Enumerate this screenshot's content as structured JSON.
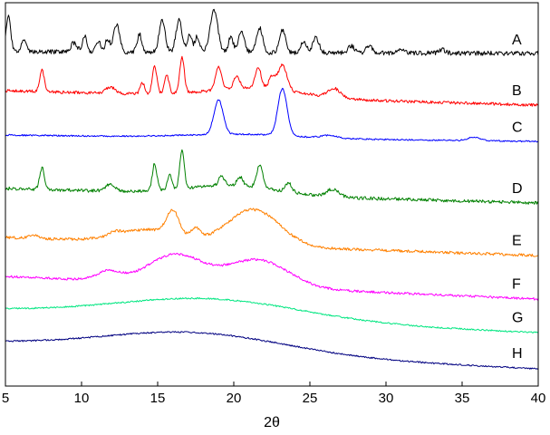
{
  "chart_data": {
    "type": "line",
    "title": "",
    "xlabel": "2θ",
    "ylabel": "",
    "xlim": [
      5,
      40
    ],
    "x_ticks": [
      5,
      10,
      15,
      20,
      25,
      30,
      35,
      40
    ],
    "y_ticks_shown": false,
    "grid": false,
    "legend": "none (labels placed at right end of each trace)",
    "series": [
      {
        "name": "A",
        "color": "#000000",
        "baseline": 57,
        "peaks": [
          [
            5.2,
            38,
            0.15
          ],
          [
            6.2,
            12,
            0.15
          ],
          [
            9.5,
            10,
            0.2
          ],
          [
            10.2,
            18,
            0.15
          ],
          [
            11.1,
            12,
            0.15
          ],
          [
            11.7,
            14,
            0.15
          ],
          [
            12.3,
            30,
            0.2
          ],
          [
            13.8,
            20,
            0.15
          ],
          [
            15.3,
            35,
            0.2
          ],
          [
            16.4,
            35,
            0.2
          ],
          [
            17.1,
            20,
            0.15
          ],
          [
            17.6,
            18,
            0.15
          ],
          [
            18.7,
            47,
            0.25
          ],
          [
            19.8,
            18,
            0.15
          ],
          [
            20.5,
            24,
            0.2
          ],
          [
            21.7,
            27,
            0.2
          ],
          [
            23.2,
            25,
            0.2
          ],
          [
            24.6,
            12,
            0.2
          ],
          [
            25.4,
            17,
            0.2
          ],
          [
            27.7,
            8,
            0.2
          ],
          [
            28.9,
            8,
            0.2
          ],
          [
            31.0,
            5,
            0.2
          ],
          [
            33.7,
            4,
            0.2
          ]
        ],
        "humps": [],
        "tail_drop": 2,
        "noise": 2.5
      },
      {
        "name": "B",
        "color": "#ff0000",
        "baseline": 100,
        "peaks": [
          [
            7.4,
            24,
            0.15
          ],
          [
            11.9,
            7,
            0.3
          ],
          [
            14.0,
            12,
            0.15
          ],
          [
            14.8,
            30,
            0.15
          ],
          [
            15.6,
            20,
            0.15
          ],
          [
            16.6,
            40,
            0.15
          ],
          [
            19.0,
            26,
            0.2
          ],
          [
            20.2,
            14,
            0.2
          ],
          [
            21.6,
            24,
            0.2
          ],
          [
            22.5,
            14,
            0.2
          ],
          [
            23.2,
            28,
            0.3
          ],
          [
            26.6,
            10,
            0.4
          ]
        ],
        "humps": [
          [
            21.5,
            10,
            3.0
          ]
        ],
        "tail_drop": 16,
        "noise": 1.6
      },
      {
        "name": "C",
        "color": "#0000ff",
        "baseline": 149,
        "peaks": [
          [
            19.0,
            38,
            0.3
          ],
          [
            23.2,
            52,
            0.3
          ],
          [
            26.3,
            3,
            0.5
          ],
          [
            35.8,
            4,
            0.4
          ]
        ],
        "humps": [
          [
            20.5,
            4,
            3.5
          ]
        ],
        "tail_drop": 7,
        "noise": 0.8
      },
      {
        "name": "D",
        "color": "#008000",
        "baseline": 208,
        "peaks": [
          [
            7.4,
            24,
            0.15
          ],
          [
            11.9,
            8,
            0.3
          ],
          [
            14.8,
            30,
            0.15
          ],
          [
            15.8,
            16,
            0.15
          ],
          [
            16.6,
            42,
            0.15
          ],
          [
            19.2,
            10,
            0.2
          ],
          [
            20.4,
            10,
            0.2
          ],
          [
            21.7,
            25,
            0.2
          ],
          [
            23.6,
            10,
            0.2
          ],
          [
            26.5,
            8,
            0.4
          ]
        ],
        "humps": [
          [
            20.0,
            10,
            3.0
          ]
        ],
        "tail_drop": 16,
        "noise": 1.8
      },
      {
        "name": "E",
        "color": "#ff8000",
        "baseline": 262,
        "peaks": [
          [
            6.8,
            4,
            0.3
          ],
          [
            12.2,
            4,
            0.4
          ],
          [
            16.0,
            26,
            0.4
          ],
          [
            17.5,
            10,
            0.3
          ]
        ],
        "humps": [
          [
            14.5,
            14,
            2.0
          ],
          [
            21.3,
            40,
            1.7
          ]
        ],
        "tail_drop": 20,
        "noise": 1.5
      },
      {
        "name": "F",
        "color": "#ff00ff",
        "baseline": 305,
        "peaks": [
          [
            11.8,
            10,
            0.8
          ]
        ],
        "humps": [
          [
            16.2,
            32,
            1.8
          ],
          [
            21.6,
            30,
            2.0
          ]
        ],
        "tail_drop": 25,
        "noise": 1.3
      },
      {
        "name": "G",
        "color": "#00e680",
        "baseline": 342,
        "peaks": [],
        "humps": [
          [
            18.5,
            22,
            6.0
          ]
        ],
        "tail_drop": 25,
        "noise": 0.8
      },
      {
        "name": "H",
        "color": "#000080",
        "baseline": 379,
        "peaks": [],
        "humps": [
          [
            17.5,
            22,
            6.0
          ]
        ],
        "tail_drop": 28,
        "noise": 0.8
      }
    ]
  }
}
